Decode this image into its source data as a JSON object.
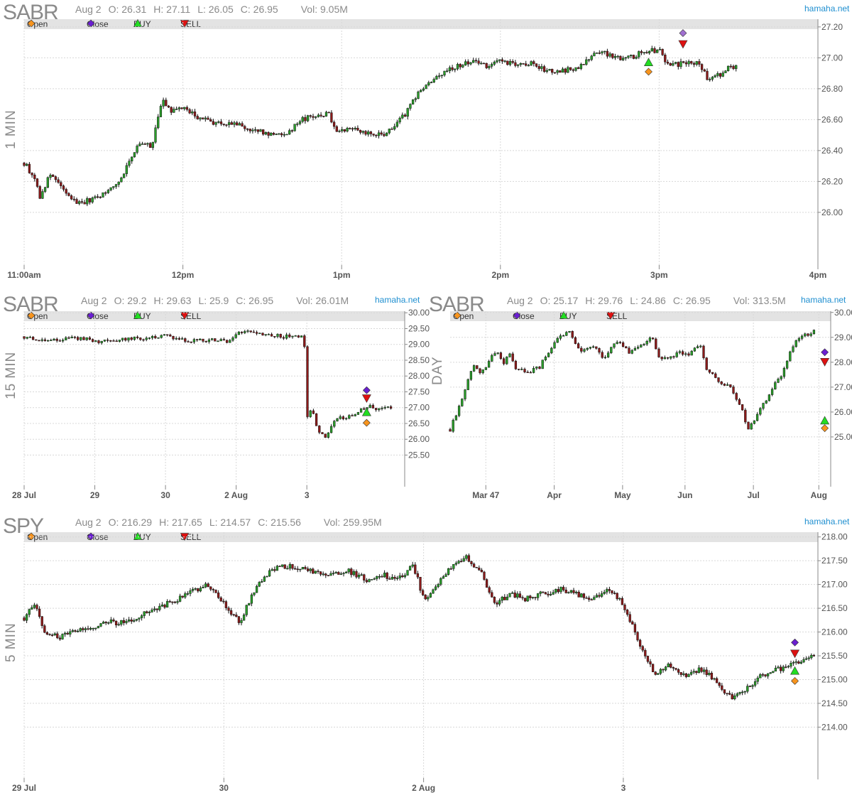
{
  "brand": "hamaha.net",
  "legend": [
    {
      "label": "Open",
      "icon": "open-diamond-icon",
      "color": "#f7941d"
    },
    {
      "label": "Close",
      "icon": "close-diamond-icon",
      "color": "#6a1fd0"
    },
    {
      "label": "BUY",
      "icon": "buy-triangle-icon",
      "color": "#22dd22"
    },
    {
      "label": "SELL",
      "icon": "sell-triangle-icon",
      "color": "#dd1111"
    }
  ],
  "colors": {
    "up": "#2a9d2a",
    "down": "#8b1a1a",
    "grid": "#d8d8d8",
    "open": "#f7941d",
    "close": "#6a1fd0",
    "buy": "#22dd22",
    "sell": "#dd1111",
    "close_faded": "#a070d0"
  },
  "chart_data": [
    {
      "type": "candlestick",
      "symbol": "SABR",
      "timeframe": "1 MIN",
      "info": {
        "date": "Aug 2",
        "open": "O: 26.31",
        "high": "H: 27.11",
        "low": "L: 26.05",
        "close": "C: 26.95",
        "volume": "Vol: 9.05M"
      },
      "ylim": [
        25.65,
        27.25
      ],
      "yticks": [
        "27.20",
        "27.00",
        "26.80",
        "26.60",
        "26.40",
        "26.20",
        "26.00"
      ],
      "xticks": [
        {
          "label": "11:00am",
          "x": 0
        },
        {
          "label": "12pm",
          "x": 60
        },
        {
          "label": "1pm",
          "x": 120
        },
        {
          "label": "2pm",
          "x": 180
        },
        {
          "label": "3pm",
          "x": 240
        },
        {
          "label": "4pm",
          "x": 300
        }
      ],
      "xlim": [
        0,
        300
      ],
      "path": [
        [
          0,
          26.32
        ],
        [
          4,
          26.22
        ],
        [
          6,
          26.1
        ],
        [
          10,
          26.25
        ],
        [
          13,
          26.18
        ],
        [
          16,
          26.12
        ],
        [
          20,
          26.06
        ],
        [
          25,
          26.08
        ],
        [
          30,
          26.12
        ],
        [
          36,
          26.2
        ],
        [
          40,
          26.35
        ],
        [
          44,
          26.45
        ],
        [
          48,
          26.42
        ],
        [
          52,
          26.72
        ],
        [
          56,
          26.65
        ],
        [
          60,
          26.68
        ],
        [
          65,
          26.62
        ],
        [
          72,
          26.58
        ],
        [
          80,
          26.57
        ],
        [
          86,
          26.53
        ],
        [
          95,
          26.5
        ],
        [
          100,
          26.52
        ],
        [
          105,
          26.6
        ],
        [
          110,
          26.62
        ],
        [
          115,
          26.64
        ],
        [
          118,
          26.53
        ],
        [
          123,
          26.55
        ],
        [
          130,
          26.51
        ],
        [
          135,
          26.5
        ],
        [
          140,
          26.55
        ],
        [
          145,
          26.66
        ],
        [
          150,
          26.8
        ],
        [
          155,
          26.85
        ],
        [
          160,
          26.93
        ],
        [
          165,
          26.95
        ],
        [
          170,
          26.99
        ],
        [
          175,
          26.94
        ],
        [
          180,
          26.98
        ],
        [
          188,
          26.95
        ],
        [
          192,
          26.96
        ],
        [
          200,
          26.9
        ],
        [
          205,
          26.92
        ],
        [
          210,
          26.95
        ],
        [
          215,
          27.02
        ],
        [
          220,
          27.03
        ],
        [
          225,
          27.0
        ],
        [
          230,
          27.01
        ],
        [
          235,
          27.04
        ],
        [
          240,
          27.05
        ],
        [
          243,
          26.96
        ],
        [
          248,
          26.96
        ],
        [
          255,
          26.97
        ],
        [
          258,
          26.87
        ],
        [
          262,
          26.88
        ],
        [
          266,
          26.93
        ],
        [
          270,
          26.94
        ]
      ],
      "trades": [
        {
          "type": "buy",
          "x": 236,
          "y": 26.97
        },
        {
          "type": "open",
          "x": 236,
          "y": 26.91
        },
        {
          "type": "close",
          "x": 249,
          "y": 27.16
        },
        {
          "type": "sell",
          "x": 249,
          "y": 27.09
        }
      ]
    },
    {
      "type": "candlestick",
      "symbol": "SABR",
      "timeframe": "15 MIN",
      "info": {
        "date": "Aug 2",
        "open": "O: 29.2",
        "high": "H: 29.63",
        "low": "L: 25.9",
        "close": "C: 26.95",
        "volume": "Vol: 26.01M"
      },
      "ylim": [
        24.5,
        30.05
      ],
      "yticks": [
        "30.00",
        "29.50",
        "29.00",
        "28.50",
        "28.00",
        "27.50",
        "27.00",
        "26.50",
        "26.00",
        "25.50"
      ],
      "xticks": [
        {
          "label": "28 Jul",
          "x": 0
        },
        {
          "label": "29",
          "x": 26
        },
        {
          "label": "30",
          "x": 52
        },
        {
          "label": "2 Aug",
          "x": 78
        },
        {
          "label": "3",
          "x": 104
        }
      ],
      "xlim": [
        0,
        140
      ],
      "path": [
        [
          0,
          29.25
        ],
        [
          5,
          29.18
        ],
        [
          10,
          29.15
        ],
        [
          18,
          29.18
        ],
        [
          24,
          29.2
        ],
        [
          26,
          29.08
        ],
        [
          30,
          29.1
        ],
        [
          36,
          29.15
        ],
        [
          44,
          29.2
        ],
        [
          52,
          29.3
        ],
        [
          55,
          29.15
        ],
        [
          62,
          29.12
        ],
        [
          70,
          29.15
        ],
        [
          76,
          29.1
        ],
        [
          78,
          29.35
        ],
        [
          82,
          29.4
        ],
        [
          86,
          29.35
        ],
        [
          90,
          29.28
        ],
        [
          96,
          29.25
        ],
        [
          100,
          29.3
        ],
        [
          103,
          29.25
        ],
        [
          104,
          26.75
        ],
        [
          106,
          26.9
        ],
        [
          108,
          26.2
        ],
        [
          111,
          26.1
        ],
        [
          114,
          26.6
        ],
        [
          118,
          26.7
        ],
        [
          122,
          26.75
        ],
        [
          125,
          27.0
        ],
        [
          128,
          27.02
        ],
        [
          131,
          26.95
        ],
        [
          135,
          27.0
        ]
      ],
      "trades": [
        {
          "type": "close",
          "x": 126,
          "y": 27.55
        },
        {
          "type": "sell",
          "x": 126,
          "y": 27.3
        },
        {
          "type": "buy",
          "x": 126,
          "y": 26.85
        },
        {
          "type": "open",
          "x": 126,
          "y": 26.52
        }
      ]
    },
    {
      "type": "candlestick",
      "symbol": "SABR",
      "timeframe": "DAY",
      "info": {
        "date": "Aug 2",
        "open": "O: 25.17",
        "high": "H: 29.76",
        "low": "L: 24.86",
        "close": "C: 26.95",
        "volume": "Vol: 313.5M"
      },
      "ylim": [
        23.0,
        30.05
      ],
      "yticks": [
        "30.00",
        "29.00",
        "28.00",
        "27.00",
        "26.00",
        "25.00"
      ],
      "xticks": [
        {
          "label": "Mar 47",
          "x": 12
        },
        {
          "label": "Apr",
          "x": 35
        },
        {
          "label": "May",
          "x": 58
        },
        {
          "label": "Jun",
          "x": 79
        },
        {
          "label": "Jul",
          "x": 102
        },
        {
          "label": "Aug",
          "x": 124
        }
      ],
      "xlim": [
        0,
        128
      ],
      "path": [
        [
          0,
          25.3
        ],
        [
          2,
          25.9
        ],
        [
          4,
          26.5
        ],
        [
          6,
          27.3
        ],
        [
          8,
          27.9
        ],
        [
          10,
          27.5
        ],
        [
          12,
          27.8
        ],
        [
          14,
          28.2
        ],
        [
          16,
          28.4
        ],
        [
          18,
          28.0
        ],
        [
          20,
          28.3
        ],
        [
          22,
          27.8
        ],
        [
          26,
          27.6
        ],
        [
          30,
          27.8
        ],
        [
          33,
          28.4
        ],
        [
          36,
          29.0
        ],
        [
          40,
          29.2
        ],
        [
          44,
          28.4
        ],
        [
          48,
          28.7
        ],
        [
          52,
          28.1
        ],
        [
          56,
          28.9
        ],
        [
          60,
          28.4
        ],
        [
          64,
          28.7
        ],
        [
          68,
          29.0
        ],
        [
          70,
          28.2
        ],
        [
          74,
          28.2
        ],
        [
          78,
          28.4
        ],
        [
          80,
          28.2
        ],
        [
          84,
          28.8
        ],
        [
          86,
          27.8
        ],
        [
          90,
          27.2
        ],
        [
          94,
          27.0
        ],
        [
          98,
          26.2
        ],
        [
          100,
          25.3
        ],
        [
          104,
          26.0
        ],
        [
          108,
          26.9
        ],
        [
          112,
          27.6
        ],
        [
          116,
          28.9
        ],
        [
          120,
          29.1
        ],
        [
          123,
          29.3
        ]
      ],
      "trades": [
        {
          "type": "close",
          "x": 126,
          "y": 28.4
        },
        {
          "type": "sell",
          "x": 126,
          "y": 28.02
        },
        {
          "type": "buy",
          "x": 126,
          "y": 25.65
        },
        {
          "type": "open",
          "x": 126,
          "y": 25.35
        }
      ]
    },
    {
      "type": "candlestick",
      "symbol": "SPY",
      "timeframe": "5 MIN",
      "info": {
        "date": "Aug 2",
        "open": "O: 216.29",
        "high": "H: 217.65",
        "low": "L: 214.57",
        "close": "C: 215.56",
        "volume": "Vol: 259.95M"
      },
      "ylim": [
        212.9,
        218.1
      ],
      "yticks": [
        "218.00",
        "217.50",
        "217.00",
        "216.50",
        "216.00",
        "215.50",
        "215.00",
        "214.50",
        "214.00"
      ],
      "xticks": [
        {
          "label": "29 Jul",
          "x": 0
        },
        {
          "label": "30",
          "x": 78
        },
        {
          "label": "2 Aug",
          "x": 156
        },
        {
          "label": "3",
          "x": 234
        }
      ],
      "xlim": [
        0,
        310
      ],
      "path": [
        [
          0,
          216.3
        ],
        [
          4,
          216.6
        ],
        [
          8,
          216.0
        ],
        [
          14,
          215.9
        ],
        [
          20,
          216.0
        ],
        [
          26,
          216.1
        ],
        [
          32,
          216.2
        ],
        [
          40,
          216.2
        ],
        [
          48,
          216.4
        ],
        [
          56,
          216.6
        ],
        [
          64,
          216.8
        ],
        [
          72,
          217.0
        ],
        [
          78,
          216.6
        ],
        [
          84,
          216.2
        ],
        [
          90,
          216.9
        ],
        [
          96,
          217.3
        ],
        [
          104,
          217.4
        ],
        [
          110,
          217.3
        ],
        [
          118,
          217.2
        ],
        [
          126,
          217.3
        ],
        [
          134,
          217.1
        ],
        [
          140,
          217.2
        ],
        [
          146,
          217.1
        ],
        [
          152,
          217.4
        ],
        [
          156,
          216.7
        ],
        [
          160,
          216.9
        ],
        [
          166,
          217.3
        ],
        [
          172,
          217.6
        ],
        [
          178,
          217.3
        ],
        [
          184,
          216.6
        ],
        [
          190,
          216.8
        ],
        [
          196,
          216.7
        ],
        [
          202,
          216.8
        ],
        [
          210,
          216.9
        ],
        [
          216,
          216.8
        ],
        [
          222,
          216.7
        ],
        [
          228,
          216.9
        ],
        [
          234,
          216.6
        ],
        [
          240,
          215.8
        ],
        [
          246,
          215.1
        ],
        [
          252,
          215.3
        ],
        [
          258,
          215.1
        ],
        [
          264,
          215.2
        ],
        [
          270,
          215.0
        ],
        [
          276,
          214.6
        ],
        [
          282,
          214.8
        ],
        [
          288,
          215.1
        ],
        [
          294,
          215.2
        ],
        [
          300,
          215.3
        ],
        [
          305,
          215.4
        ],
        [
          309,
          215.55
        ]
      ],
      "trades": [
        {
          "type": "close",
          "x": 301,
          "y": 215.78
        },
        {
          "type": "sell",
          "x": 301,
          "y": 215.55
        },
        {
          "type": "buy",
          "x": 301,
          "y": 215.18
        },
        {
          "type": "open",
          "x": 301,
          "y": 214.97
        }
      ]
    }
  ]
}
